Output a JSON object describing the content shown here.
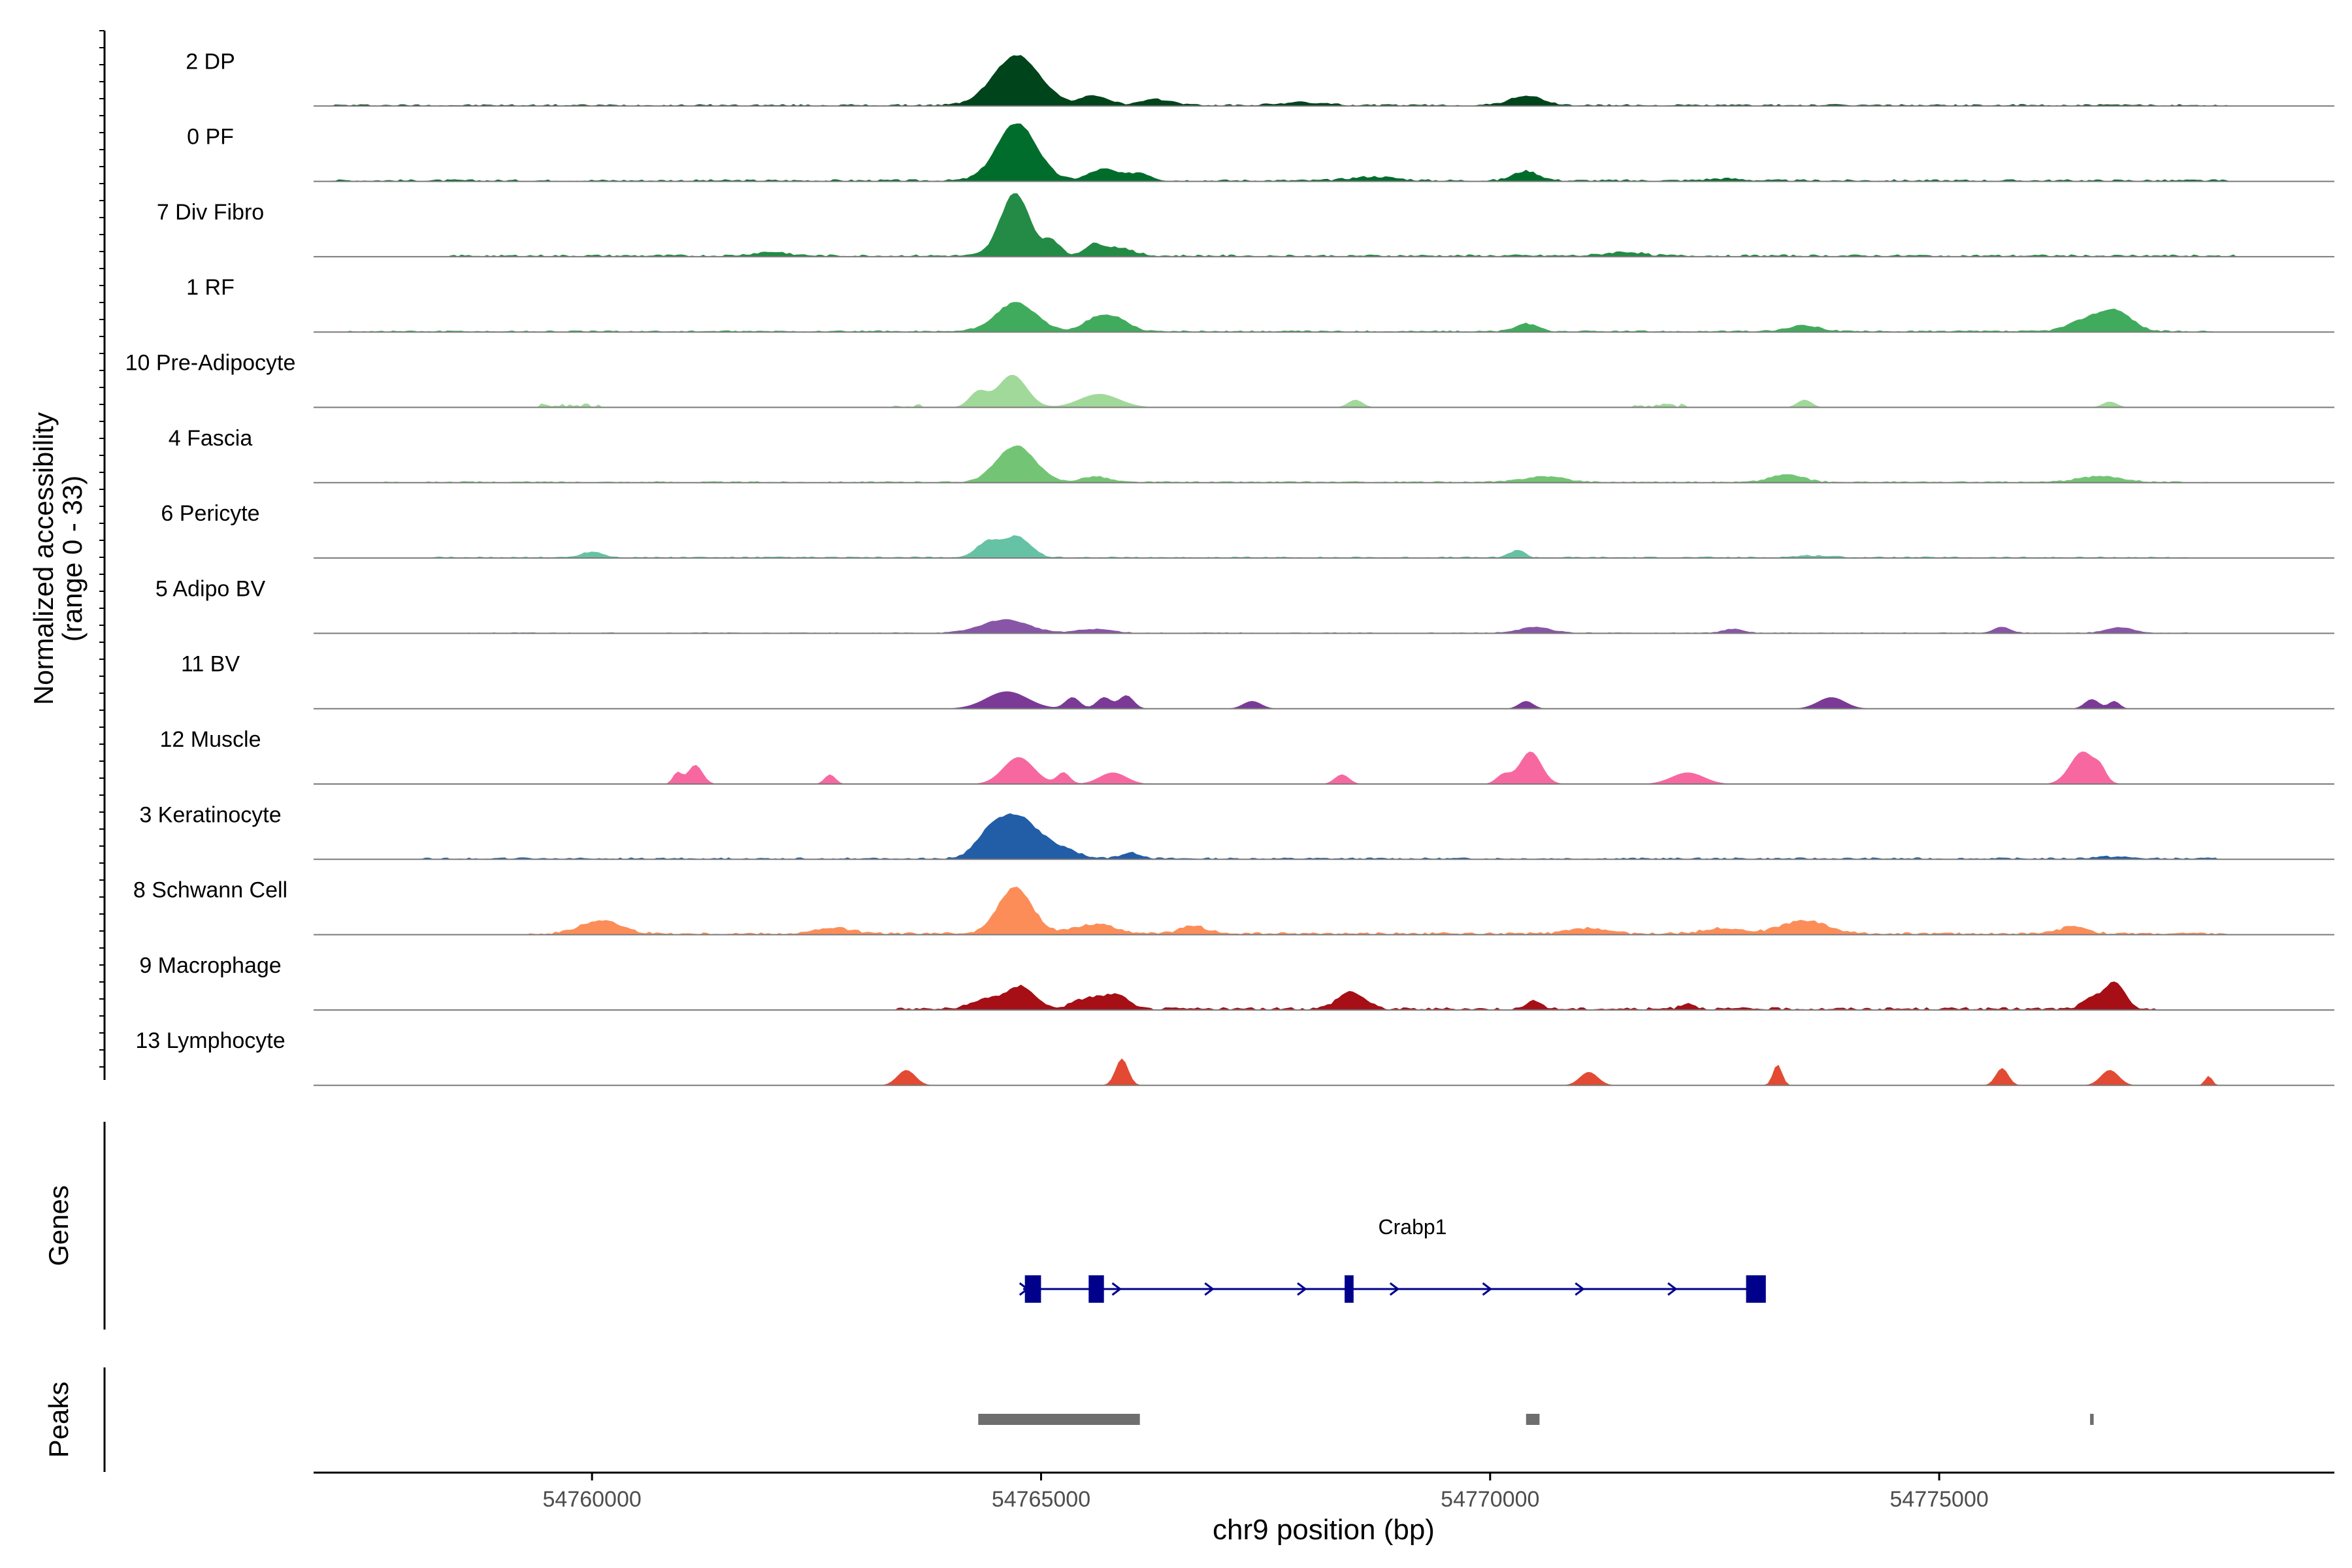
{
  "chart_data": {
    "type": "area",
    "subtype": "coverage-track",
    "xlabel": "chr9 position (bp)",
    "xlim": [
      54756900,
      54779400
    ],
    "xticks": [
      {
        "value": 54760000,
        "label": "54760000"
      },
      {
        "value": 54765000,
        "label": "54765000"
      },
      {
        "value": 54770000,
        "label": "54770000"
      },
      {
        "value": 54775000,
        "label": "54775000"
      }
    ],
    "ylabel": [
      "Normalized accessibility",
      "(range 0 - 33)"
    ],
    "ylim": [
      0,
      33
    ],
    "grid": false,
    "legend": "none",
    "track_labels": {
      "genes": "Genes",
      "peaks": "Peaks"
    },
    "series": [
      {
        "name": "2 DP",
        "color": "#00441B",
        "peaks": [
          [
            54764730,
            260,
            26
          ],
          [
            54765600,
            150,
            5
          ],
          [
            54766300,
            180,
            3
          ],
          [
            54770400,
            180,
            5
          ],
          [
            54767900,
            250,
            1.5
          ]
        ],
        "noise": [
          [
            54757100,
            54778200,
            1.0
          ]
        ]
      },
      {
        "name": "0 PF",
        "color": "#006D2C",
        "peaks": [
          [
            54764730,
            220,
            30
          ],
          [
            54765700,
            160,
            6
          ],
          [
            54766100,
            120,
            4
          ],
          [
            54768700,
            250,
            2
          ],
          [
            54770400,
            140,
            5
          ],
          [
            54772600,
            200,
            1
          ]
        ],
        "noise": [
          [
            54757100,
            54778200,
            1.1
          ]
        ]
      },
      {
        "name": "7 Div Fibro",
        "color": "#238B45",
        "peaks": [
          [
            54764710,
            160,
            33
          ],
          [
            54765120,
            90,
            8
          ],
          [
            54765600,
            120,
            6
          ],
          [
            54765900,
            140,
            4
          ],
          [
            54762000,
            200,
            2
          ],
          [
            54771500,
            200,
            2
          ]
        ],
        "noise": [
          [
            54758400,
            54778300,
            1.2
          ]
        ]
      },
      {
        "name": "1 RF",
        "color": "#41AB5D",
        "peaks": [
          [
            54764720,
            220,
            15
          ],
          [
            54765600,
            150,
            6
          ],
          [
            54765850,
            150,
            6
          ],
          [
            54770400,
            120,
            4
          ],
          [
            54773500,
            180,
            3
          ],
          [
            54776700,
            220,
            7
          ],
          [
            54777000,
            170,
            8
          ]
        ],
        "noise": [
          [
            54757300,
            54778100,
            0.9
          ]
        ]
      },
      {
        "name": "10 Pre-Adipocyte",
        "color": "#A1D99B",
        "peaks": [
          [
            54764680,
            160,
            17
          ],
          [
            54764300,
            100,
            8
          ],
          [
            54765650,
            220,
            7
          ],
          [
            54768500,
            80,
            4
          ],
          [
            54773500,
            80,
            4
          ],
          [
            54776900,
            80,
            3
          ]
        ],
        "noise": [
          [
            54759400,
            54760100,
            2
          ],
          [
            54763300,
            54763700,
            2
          ],
          [
            54771600,
            54772200,
            2
          ]
        ]
      },
      {
        "name": "4 Fascia",
        "color": "#74C476",
        "peaks": [
          [
            54764720,
            210,
            19
          ],
          [
            54765600,
            150,
            3
          ],
          [
            54770600,
            230,
            3
          ],
          [
            54773300,
            180,
            4
          ],
          [
            54776800,
            250,
            3
          ]
        ],
        "noise": [
          [
            54757600,
            54778000,
            0.8
          ]
        ]
      },
      {
        "name": "6 Pericyte",
        "color": "#66C2A4",
        "peaks": [
          [
            54764400,
            120,
            8
          ],
          [
            54764730,
            150,
            11
          ],
          [
            54760000,
            120,
            3
          ],
          [
            54770300,
            80,
            4
          ],
          [
            54773600,
            200,
            1
          ]
        ],
        "noise": [
          [
            54758200,
            54777800,
            0.8
          ]
        ]
      },
      {
        "name": "5 Adipo BV",
        "color": "#8856A7",
        "peaks": [
          [
            54764600,
            260,
            7
          ],
          [
            54765600,
            200,
            2
          ],
          [
            54770500,
            180,
            3
          ],
          [
            54775700,
            100,
            3
          ],
          [
            54777000,
            150,
            3
          ],
          [
            54772700,
            120,
            2
          ]
        ],
        "noise": [
          [
            54758500,
            54777800,
            0.5
          ]
        ]
      },
      {
        "name": "11 BV",
        "color": "#7A3A96",
        "peaks": [
          [
            54764620,
            230,
            9
          ],
          [
            54765350,
            80,
            6
          ],
          [
            54765700,
            80,
            6
          ],
          [
            54765950,
            80,
            7
          ],
          [
            54767350,
            100,
            4
          ],
          [
            54770400,
            80,
            4
          ],
          [
            54773800,
            150,
            6
          ],
          [
            54776700,
            80,
            5
          ],
          [
            54776950,
            60,
            4
          ]
        ],
        "noise": []
      },
      {
        "name": "12 Muscle",
        "color": "#F768A1",
        "peaks": [
          [
            54761150,
            80,
            10
          ],
          [
            54760950,
            50,
            6
          ],
          [
            54764750,
            170,
            14
          ],
          [
            54765250,
            70,
            6
          ],
          [
            54765800,
            150,
            6
          ],
          [
            54770450,
            120,
            17
          ],
          [
            54770150,
            80,
            5
          ],
          [
            54776600,
            140,
            17
          ],
          [
            54776800,
            60,
            5
          ],
          [
            54762650,
            60,
            5
          ],
          [
            54768350,
            80,
            5
          ],
          [
            54772200,
            180,
            6
          ]
        ],
        "noise": []
      },
      {
        "name": "3 Keratinocyte",
        "color": "#225EA8",
        "peaks": [
          [
            54764720,
            230,
            22
          ],
          [
            54764400,
            150,
            8
          ],
          [
            54765200,
            200,
            5
          ],
          [
            54766000,
            120,
            3
          ],
          [
            54776900,
            200,
            1
          ]
        ],
        "noise": [
          [
            54758100,
            54778100,
            1.0
          ]
        ]
      },
      {
        "name": "8 Schwann Cell",
        "color": "#FC8D59",
        "peaks": [
          [
            54764710,
            190,
            24
          ],
          [
            54760100,
            220,
            7
          ],
          [
            54765600,
            230,
            5
          ],
          [
            54771100,
            200,
            3
          ],
          [
            54773500,
            250,
            7
          ],
          [
            54772600,
            220,
            3
          ],
          [
            54776500,
            150,
            4
          ],
          [
            54766700,
            150,
            4
          ],
          [
            54762700,
            200,
            3
          ]
        ],
        "noise": [
          [
            54759300,
            54778200,
            1.3
          ]
        ]
      },
      {
        "name": "9 Macrophage",
        "color": "#A50F15",
        "peaks": [
          [
            54764450,
            180,
            6
          ],
          [
            54764800,
            140,
            11
          ],
          [
            54765550,
            180,
            6
          ],
          [
            54765850,
            120,
            6
          ],
          [
            54768450,
            150,
            9
          ],
          [
            54776950,
            110,
            14
          ],
          [
            54776700,
            110,
            5
          ],
          [
            54770500,
            80,
            4
          ],
          [
            54772200,
            80,
            3
          ]
        ],
        "noise": [
          [
            54763400,
            54777400,
            1.5
          ]
        ]
      },
      {
        "name": "13 Lymphocyte",
        "color": "#E34A33",
        "peaks": [
          [
            54763500,
            100,
            8
          ],
          [
            54765900,
            70,
            14
          ],
          [
            54771100,
            100,
            7
          ],
          [
            54773200,
            50,
            11
          ],
          [
            54775700,
            70,
            9
          ],
          [
            54776900,
            100,
            8
          ],
          [
            54778000,
            40,
            5
          ]
        ],
        "noise": []
      }
    ],
    "gene": {
      "name": "Crabp1",
      "start": 54764800,
      "end": 54773050,
      "strand": "+",
      "color": "#00008B",
      "exons": [
        [
          54764820,
          54765000
        ],
        [
          54765530,
          54765700
        ],
        [
          54768380,
          54768480
        ],
        [
          54772850,
          54773070
        ]
      ]
    },
    "peak_regions": [
      [
        54764300,
        54766100
      ],
      [
        54770400,
        54770550
      ],
      [
        54776680,
        54776720
      ]
    ],
    "peak_color": "#6E6E6E"
  }
}
